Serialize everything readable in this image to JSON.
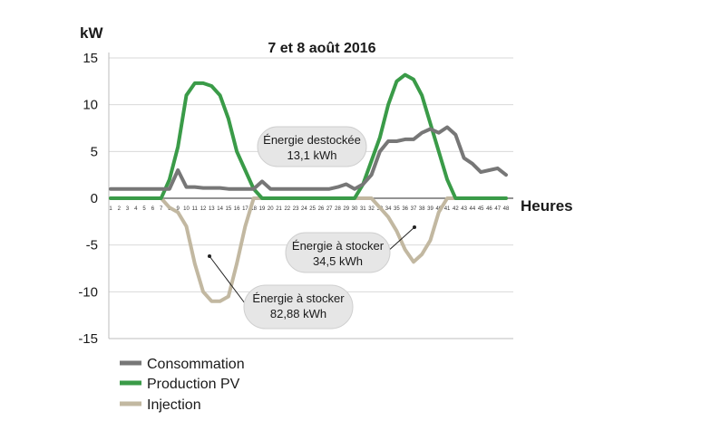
{
  "chart_data": {
    "type": "line",
    "title": "7 et 8 août 2016",
    "ylabel": "kW",
    "xlabel": "Heures",
    "ylim": [
      -15,
      15
    ],
    "yticks": [
      15,
      10,
      5,
      0,
      -5,
      -10,
      -15
    ],
    "y_tick_labels": [
      "15",
      "10",
      "5",
      "0",
      "-5",
      "-10",
      "-15"
    ],
    "x": [
      1,
      2,
      3,
      4,
      5,
      6,
      7,
      8,
      9,
      10,
      11,
      12,
      13,
      14,
      15,
      16,
      17,
      18,
      19,
      20,
      21,
      22,
      23,
      24,
      25,
      26,
      27,
      28,
      29,
      30,
      31,
      32,
      33,
      34,
      35,
      36,
      37,
      38,
      39,
      40,
      41,
      42,
      43,
      44,
      45,
      46,
      47,
      48
    ],
    "grid": "horizontal",
    "legend_position": "bottom-left",
    "series": [
      {
        "name": "Consommation",
        "color": "#777777",
        "values": [
          1,
          1,
          1,
          1,
          1,
          1,
          1,
          1,
          3,
          1.2,
          1.2,
          1.1,
          1.1,
          1.1,
          1,
          1,
          1,
          1,
          1.8,
          1,
          1,
          1,
          1,
          1,
          1,
          1,
          1,
          1.2,
          1.5,
          1,
          1.5,
          2.5,
          5,
          6.1,
          6.1,
          6.3,
          6.3,
          7,
          7.4,
          7,
          7.6,
          6.8,
          4.3,
          3.7,
          2.8,
          3,
          3.2,
          2.5
        ]
      },
      {
        "name": "Production PV",
        "color": "#3a9b48",
        "values": [
          0,
          0,
          0,
          0,
          0,
          0,
          0,
          2,
          5.5,
          11,
          12.3,
          12.3,
          12,
          11,
          8.5,
          5,
          3,
          1,
          0,
          0,
          0,
          0,
          0,
          0,
          0,
          0,
          0,
          0,
          0,
          0,
          1.5,
          4,
          6.5,
          10,
          12.5,
          13.2,
          12.7,
          11,
          8,
          5,
          2,
          0,
          0,
          0,
          0,
          0,
          0,
          0
        ]
      },
      {
        "name": "Injection",
        "color": "#c2b8a1",
        "values": [
          0,
          0,
          0,
          0,
          0,
          0,
          0,
          -1,
          -1.5,
          -3,
          -7,
          -10,
          -11,
          -11,
          -10.5,
          -7,
          -3,
          0,
          0,
          0,
          0,
          0,
          0,
          0,
          0,
          0,
          0,
          0,
          0,
          0,
          0,
          0,
          -1,
          -2,
          -3.5,
          -5.5,
          -6.8,
          -6,
          -4.5,
          -1.5,
          0,
          0,
          0,
          0,
          0,
          0,
          0,
          0
        ]
      }
    ],
    "annotations": [
      {
        "line1": "Énergie destockée",
        "line2": "13,1 kWh"
      },
      {
        "line1": "Énergie à stocker",
        "line2": "34,5 kWh"
      },
      {
        "line1": "Énergie à stocker",
        "line2": "82,88 kWh"
      }
    ]
  }
}
